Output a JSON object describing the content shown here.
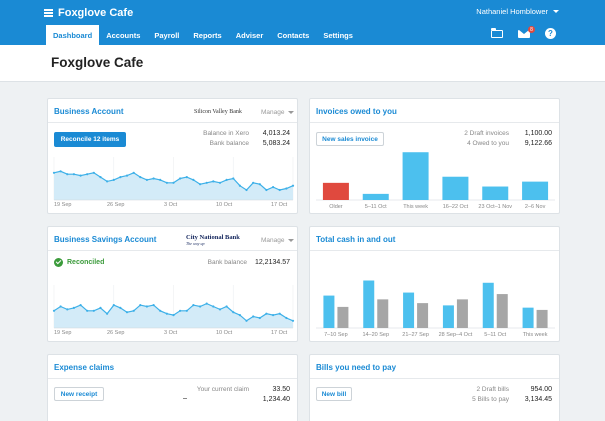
{
  "header": {
    "org_name": "Foxglove Cafe",
    "user_name": "Nathaniel Homblower",
    "mail_badge": "8",
    "nav": [
      "Dashboard",
      "Accounts",
      "Payroll",
      "Reports",
      "Adviser",
      "Contacts",
      "Settings"
    ],
    "active_tab": "Dashboard"
  },
  "page": {
    "title": "Foxglove Cafe"
  },
  "business_account": {
    "title": "Business Account",
    "bank": "Silicon Valley Bank",
    "manage": "Manage",
    "reconcile_label": "Reconcile 12 items",
    "balance_xero_label": "Balance in Xero",
    "balance_xero": "4,013.24",
    "bank_balance_label": "Bank balance",
    "bank_balance": "5,083.24",
    "x_labels": [
      "19 Sep",
      "26 Sep",
      "3 Oct",
      "10 Oct",
      "17 Oct"
    ]
  },
  "savings_account": {
    "title": "Business Savings Account",
    "bank": "City National Bank",
    "bank_tagline": "The way up",
    "manage": "Manage",
    "reconciled_label": "Reconciled",
    "bank_balance_label": "Bank balance",
    "bank_balance": "12,2134.57",
    "x_labels": [
      "19 Sep",
      "26 Sep",
      "3 Oct",
      "10 Oct",
      "17 Oct"
    ]
  },
  "invoices": {
    "title": "Invoices owed to you",
    "new_label": "New sales invoice",
    "draft_label": "2 Draft invoices",
    "draft_value": "1,100.00",
    "owed_label": "4 Owed to you",
    "owed_value": "9,122.66"
  },
  "cash": {
    "title": "Total cash in and out"
  },
  "expenses": {
    "title": "Expense claims",
    "new_label": "New receipt",
    "current_label": "Your current claim",
    "current_value": "33.50",
    "second_value": "1,234.40"
  },
  "bills": {
    "title": "Bills you need to pay",
    "new_label": "New bill",
    "draft_label": "2 Draft bills",
    "draft_value": "954.00",
    "pay_label": "5 Bills to pay",
    "pay_value": "3,134.45"
  },
  "chart_data": [
    {
      "type": "area",
      "name": "business-account-balance",
      "y": [
        59,
        60,
        58,
        58,
        57,
        58,
        59,
        56,
        53,
        54,
        56,
        57,
        59,
        56,
        54,
        55,
        54,
        52,
        52,
        55,
        56,
        54,
        51,
        52,
        53,
        52,
        54,
        55,
        50,
        47,
        52,
        51,
        47,
        49,
        47,
        48,
        50
      ],
      "ylim": [
        40,
        70
      ],
      "x_tick_labels": [
        "19 Sep",
        "26 Sep",
        "3 Oct",
        "10 Oct",
        "17 Oct"
      ],
      "color": "#3db0e8",
      "fill": "#d3ebf8"
    },
    {
      "type": "area",
      "name": "savings-account-balance",
      "y": [
        52,
        55,
        53,
        54,
        56,
        52,
        52,
        54,
        50,
        56,
        54,
        51,
        52,
        56,
        55,
        56,
        52,
        50,
        49,
        52,
        52,
        56,
        55,
        57,
        55,
        53,
        55,
        51,
        49,
        45,
        48,
        47,
        50,
        49,
        50,
        47,
        45
      ],
      "ylim": [
        40,
        70
      ],
      "x_tick_labels": [
        "19 Sep",
        "26 Sep",
        "3 Oct",
        "10 Oct",
        "17 Oct"
      ],
      "color": "#3db0e8",
      "fill": "#d3ebf8"
    },
    {
      "type": "bar",
      "name": "invoices-owed",
      "categories": [
        "Older",
        "5–11 Oct",
        "This week",
        "16–22 Oct",
        "23 Oct–1 Nov",
        "2–6 Nov"
      ],
      "values": [
        14,
        5,
        39,
        19,
        11,
        15
      ],
      "colors": [
        "#e0493e",
        "#4cc0ee",
        "#4cc0ee",
        "#4cc0ee",
        "#4cc0ee",
        "#4cc0ee"
      ],
      "ylim": [
        0,
        40
      ]
    },
    {
      "type": "bar",
      "name": "total-cash-in-out",
      "categories": [
        "7–10 Sep",
        "14–20 Sep",
        "21–27 Sep",
        "28 Sep–4 Oct",
        "5–11 Oct",
        "This week"
      ],
      "series": [
        {
          "values": [
            43,
            63,
            47,
            30,
            60,
            27
          ],
          "color": "#4cc0ee"
        },
        {
          "values": [
            28,
            38,
            33,
            38,
            45,
            24
          ],
          "color": "#a6a6a6"
        }
      ],
      "ylim": [
        0,
        65
      ]
    }
  ]
}
